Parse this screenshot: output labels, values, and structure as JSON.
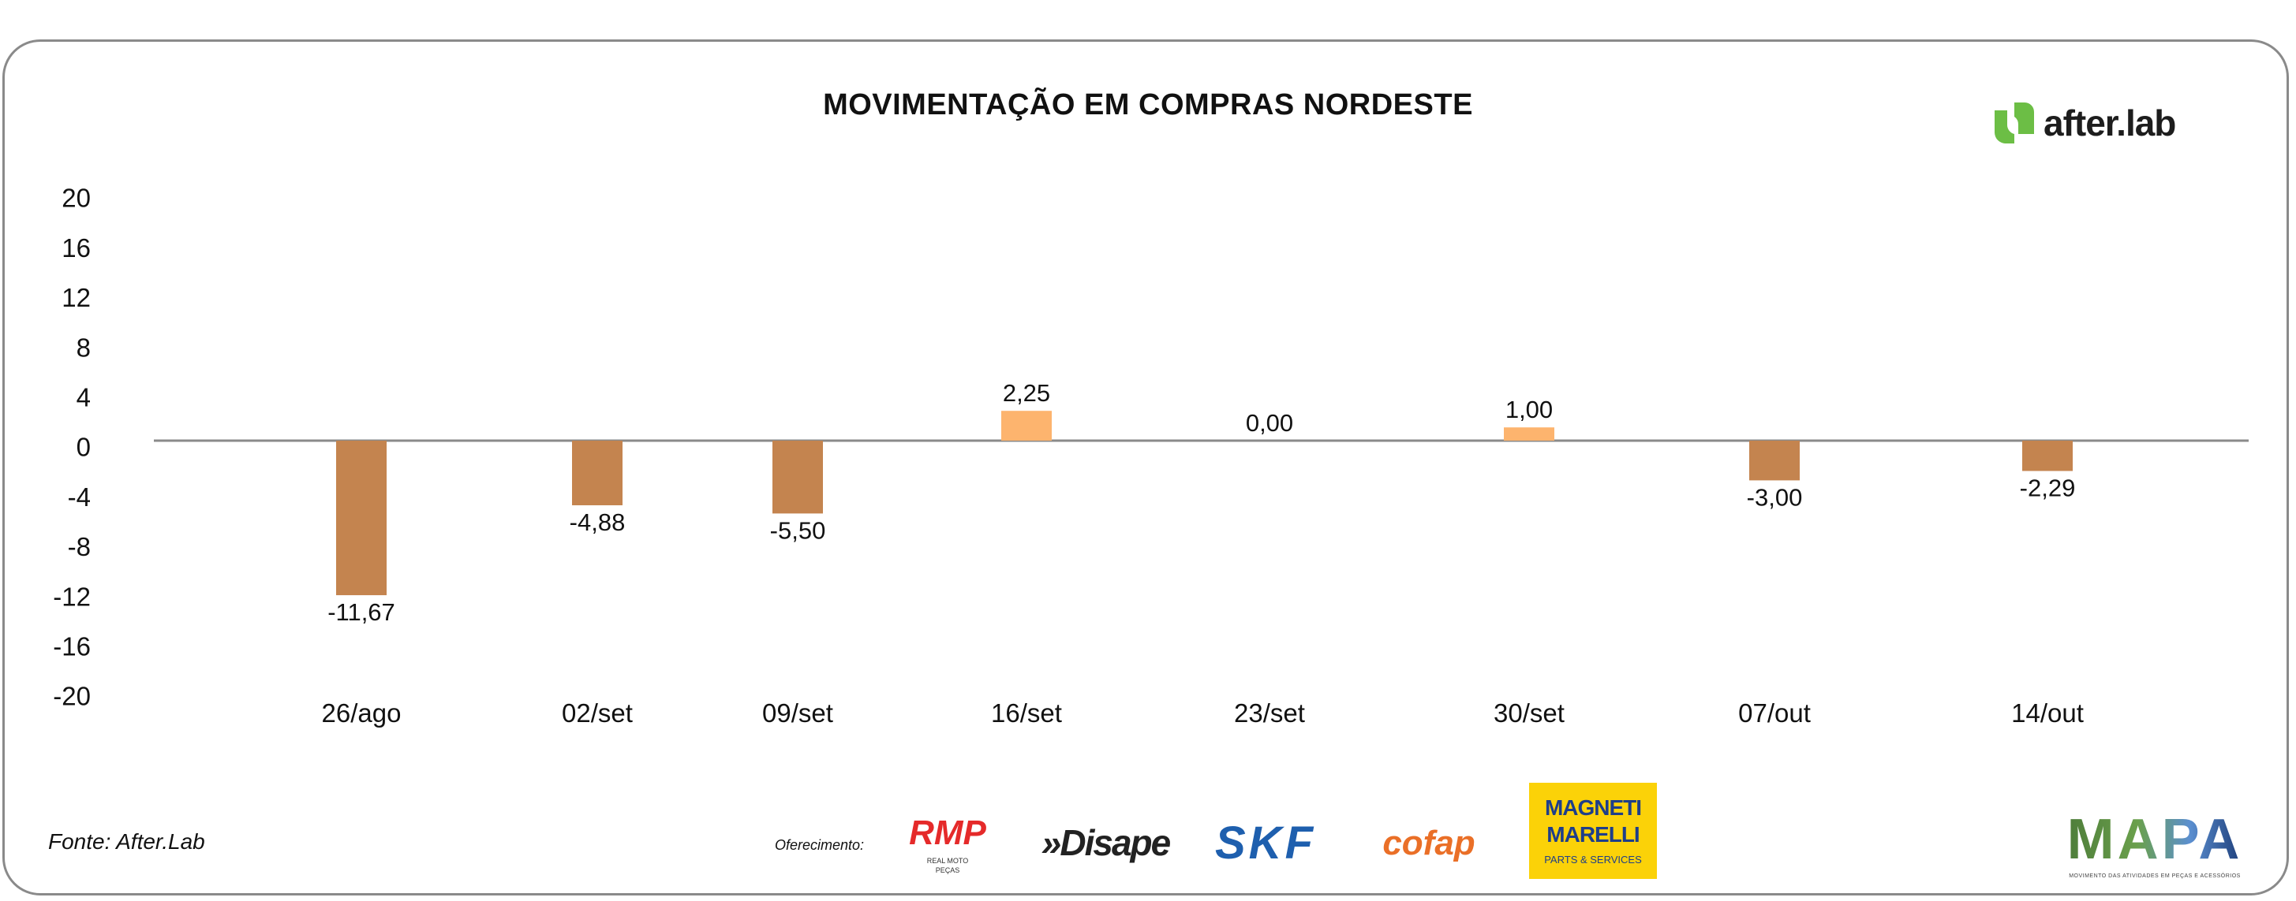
{
  "chart_data": {
    "type": "bar",
    "title": "MOVIMENTAÇÃO EM COMPRAS NORDESTE",
    "xlabel": "",
    "ylabel": "",
    "categories": [
      "26/ago",
      "02/set",
      "09/set",
      "16/set",
      "23/set",
      "30/set",
      "07/out",
      "14/out"
    ],
    "values": [
      -11.67,
      -4.88,
      -5.5,
      2.25,
      0.0,
      1.0,
      -3.0,
      -2.29
    ],
    "value_labels": [
      "-11,67",
      "-4,88",
      "-5,50",
      "2,25",
      "0,00",
      "1,00",
      "-3,00",
      "-2,29"
    ],
    "ylim": [
      -20,
      20
    ],
    "yticks": [
      20,
      16,
      12,
      8,
      4,
      0,
      -4,
      -8,
      -12,
      -16,
      -20
    ],
    "grid": false,
    "legend": "none",
    "colors": {
      "negative": "#C4844F",
      "positive": "#FDB46E",
      "axis": "#8a8a8a"
    }
  },
  "brand": {
    "name": "after.lab",
    "color": "#6CBE45"
  },
  "footer": {
    "source": "Fonte: After.Lab",
    "sponsor_label": "Oferecimento:",
    "sponsors": {
      "rmp": "RMP",
      "rmp_sub": "REAL MOTO PEÇAS",
      "disape": "»Disape",
      "skf": "SKF",
      "cofap": "cofap",
      "magneti": "MAGNETI MARELLI",
      "magneti_sub": "PARTS & SERVICES",
      "mapa": "MAPA",
      "mapa_sub": "MOVIMENTO DAS ATIVIDADES EM PEÇAS E ACESSÓRIOS"
    }
  }
}
